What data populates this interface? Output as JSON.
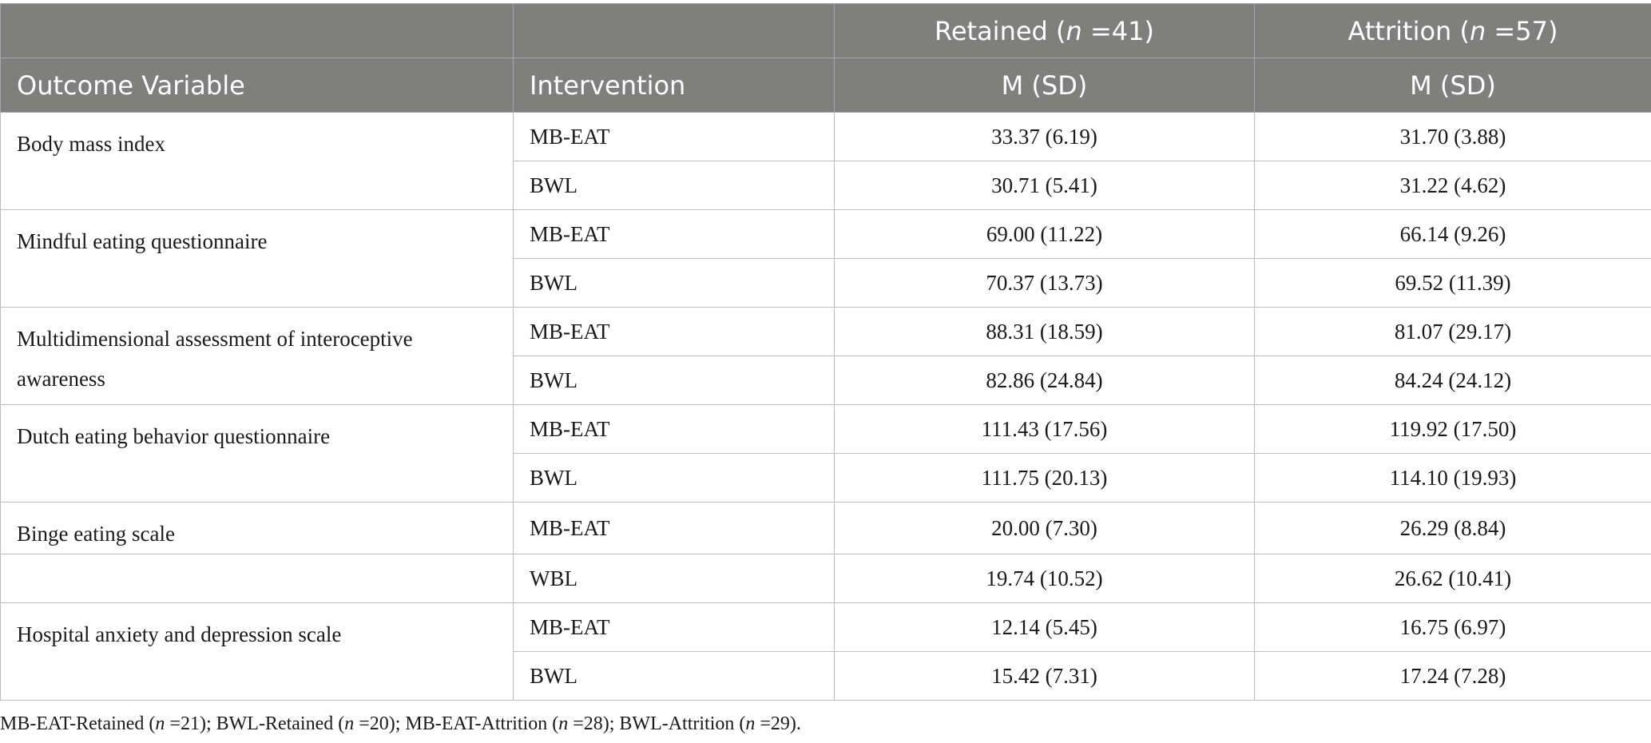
{
  "header": {
    "group_retained": "Retained (",
    "group_retained_n": "n",
    "group_retained_count": " =41)",
    "group_attrition": "Attrition (",
    "group_attrition_n": "n",
    "group_attrition_count": " =57)",
    "col_outcome": "Outcome Variable",
    "col_intervention": "Intervention",
    "col_retained_stat": "M (SD)",
    "col_attrition_stat": "M (SD)"
  },
  "rows": [
    {
      "outcome": "Body mass index",
      "intervention": "MB-EAT",
      "retained": "33.37 (6.19)",
      "attrition": "31.70 (3.88)"
    },
    {
      "outcome": "",
      "intervention": "BWL",
      "retained": "30.71 (5.41)",
      "attrition": "31.22 (4.62)"
    },
    {
      "outcome": "Mindful eating questionnaire",
      "intervention": "MB-EAT",
      "retained": "69.00 (11.22)",
      "attrition": "66.14 (9.26)"
    },
    {
      "outcome": "",
      "intervention": "BWL",
      "retained": "70.37 (13.73)",
      "attrition": "69.52 (11.39)"
    },
    {
      "outcome": "Multidimensional assessment of interoceptive awareness",
      "intervention": "MB-EAT",
      "retained": "88.31 (18.59)",
      "attrition": "81.07 (29.17)"
    },
    {
      "outcome": "",
      "intervention": "BWL",
      "retained": "82.86 (24.84)",
      "attrition": "84.24 (24.12)"
    },
    {
      "outcome": "Dutch eating behavior questionnaire",
      "intervention": "MB-EAT",
      "retained": "111.43 (17.56)",
      "attrition": "119.92 (17.50)"
    },
    {
      "outcome": "",
      "intervention": "BWL",
      "retained": "111.75 (20.13)",
      "attrition": "114.10 (19.93)"
    },
    {
      "outcome": "Binge eating scale",
      "intervention": "MB-EAT",
      "retained": "20.00 (7.30)",
      "attrition": "26.29 (8.84)"
    },
    {
      "outcome": "",
      "intervention": "WBL",
      "retained": "19.74 (10.52)",
      "attrition": "26.62 (10.41)"
    },
    {
      "outcome": "Hospital anxiety and depression scale",
      "intervention": "MB-EAT",
      "retained": "12.14 (5.45)",
      "attrition": "16.75 (6.97)"
    },
    {
      "outcome": "",
      "intervention": "BWL",
      "retained": "15.42 (7.31)",
      "attrition": "17.24 (7.28)"
    }
  ],
  "footnote": {
    "p1": "MB-EAT-Retained (",
    "n1": "n",
    "v1": " =21); BWL-Retained (",
    "n2": "n",
    "v2": " =20); MB-EAT-Attrition (",
    "n3": "n",
    "v3": " =28); BWL-Attrition (",
    "n4": "n",
    "v4": " =29)."
  }
}
